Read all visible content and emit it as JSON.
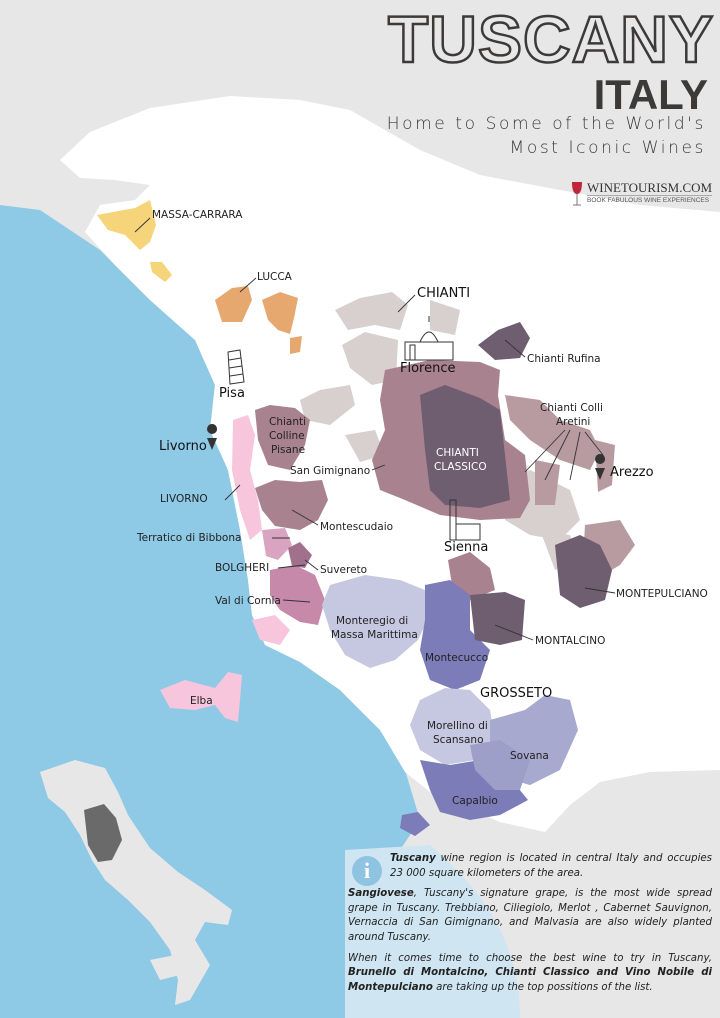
{
  "header": {
    "title": "TUSCANY",
    "country": "ITALY",
    "tagline_line1": "Home to Some of the World's",
    "tagline_line2": "Most Iconic Wines"
  },
  "logo": {
    "name": "WINETOURISM.COM",
    "tagline": "BOOK FABULOUS WINE EXPERIENCES"
  },
  "colors": {
    "sea": "#8ec9e6",
    "land": "#ffffff",
    "background": "#e8e7e8",
    "massa_carrara": "#f5d47a",
    "lucca": "#e6a86f",
    "chianti": "#d8cfcf",
    "chianti_classico": "#6f5d70",
    "sangiovese_mauve": "#a98290",
    "livorno_pink": "#f7c6dd",
    "grosseto_lavender": "#c6c7e0",
    "montecucco_blue": "#7b7cb8"
  },
  "regions": {
    "massa_carrara": "MASSA-CARRARA",
    "lucca": "LUCCA",
    "chianti": "CHIANTI",
    "chianti_rufina": "Chianti Rufina",
    "florence": "Florence",
    "pisa": "Pisa",
    "chianti_colli_aretini_1": "Chianti Colli",
    "chianti_colli_aretini_2": "Aretini",
    "chianti_colline_pisane_1": "Chianti",
    "chianti_colline_pisane_2": "Colline",
    "chianti_colline_pisane_3": "Pisane",
    "livorno_city": "Livorno",
    "chianti_classico_1": "CHIANTI",
    "chianti_classico_2": "CLASSICO",
    "san_gimignano": "San Gimignano",
    "arezzo": "Arezzo",
    "livorno": "LIVORNO",
    "montescudaio": "Montescudaio",
    "terratico_di_bibbona": "Terratico di Bibbona",
    "sienna": "Sienna",
    "bolgheri": "BOLGHERI",
    "suvereto": "Suvereto",
    "val_di_cornia": "Val di Cornia",
    "montepulciano": "MONTEPULCIANO",
    "monteregio_1": "Monteregio di",
    "monteregio_2": "Massa Marittima",
    "montalcino": "MONTALCINO",
    "montecucco": "Montecucco",
    "grosseto": "GROSSETO",
    "elba": "Elba",
    "morellino_1": "Morellino di",
    "morellino_2": "Scansano",
    "sovana": "Sovana",
    "capalbio": "Capalbio"
  },
  "icons": {
    "info": "info-icon",
    "pin": "map-pin-icon",
    "florence_landmark": "duomo-icon",
    "pisa_landmark": "leaning-tower-icon",
    "sienna_landmark": "torre-del-mangia-icon",
    "info_glyph": "i"
  },
  "info": {
    "p1_bold": "Tuscany",
    "p1_text": " wine region is located in central Italy and occupies 23 000 square kilometers of the area.",
    "p2_bold": "Sangiovese",
    "p2_text": ", Tuscany's signature grape, is the most wide spread grape in Tuscany. Trebbiano, Ciliegiolo, Merlot , Cabernet Sauvignon, Vernaccia di San Gimignano, and Malvasia are also widely planted around Tuscany.",
    "p3_text": "When it comes time to choose the best wine to try in Tuscany, ",
    "p3_bold": "Brunello di Montalcino, Chianti Classico and Vino Nobile di Montepulciano",
    "p3_end": " are taking up the top possitions of the list."
  }
}
